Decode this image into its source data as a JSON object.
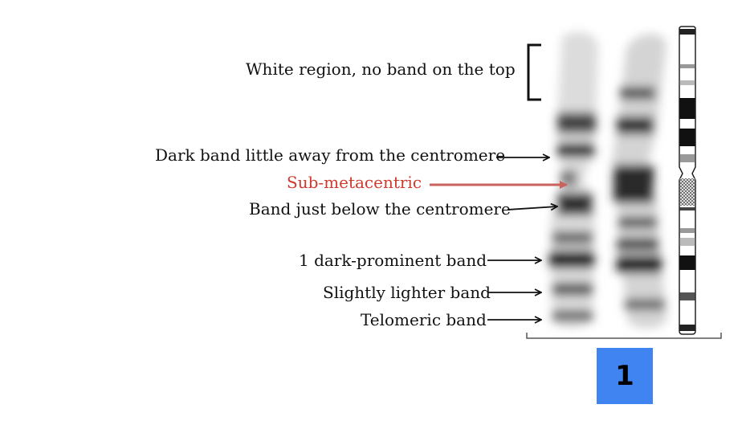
{
  "labels": {
    "white_region": "White region, no band on the top",
    "dark_band": "Dark band little away from the centromere",
    "sub_metacentric": "Sub-metacentric",
    "band_below": "Band just below the centromere",
    "dark_prominent": "1 dark-prominent band",
    "lighter_band": "Slightly lighter band",
    "telomeric": "Telomeric band"
  },
  "chromosome_number": "1",
  "colors": {
    "text": "#111111",
    "highlight": "#d03a2c",
    "highlight_arrow": "#c9635c",
    "number_box": "#3f84f0"
  }
}
